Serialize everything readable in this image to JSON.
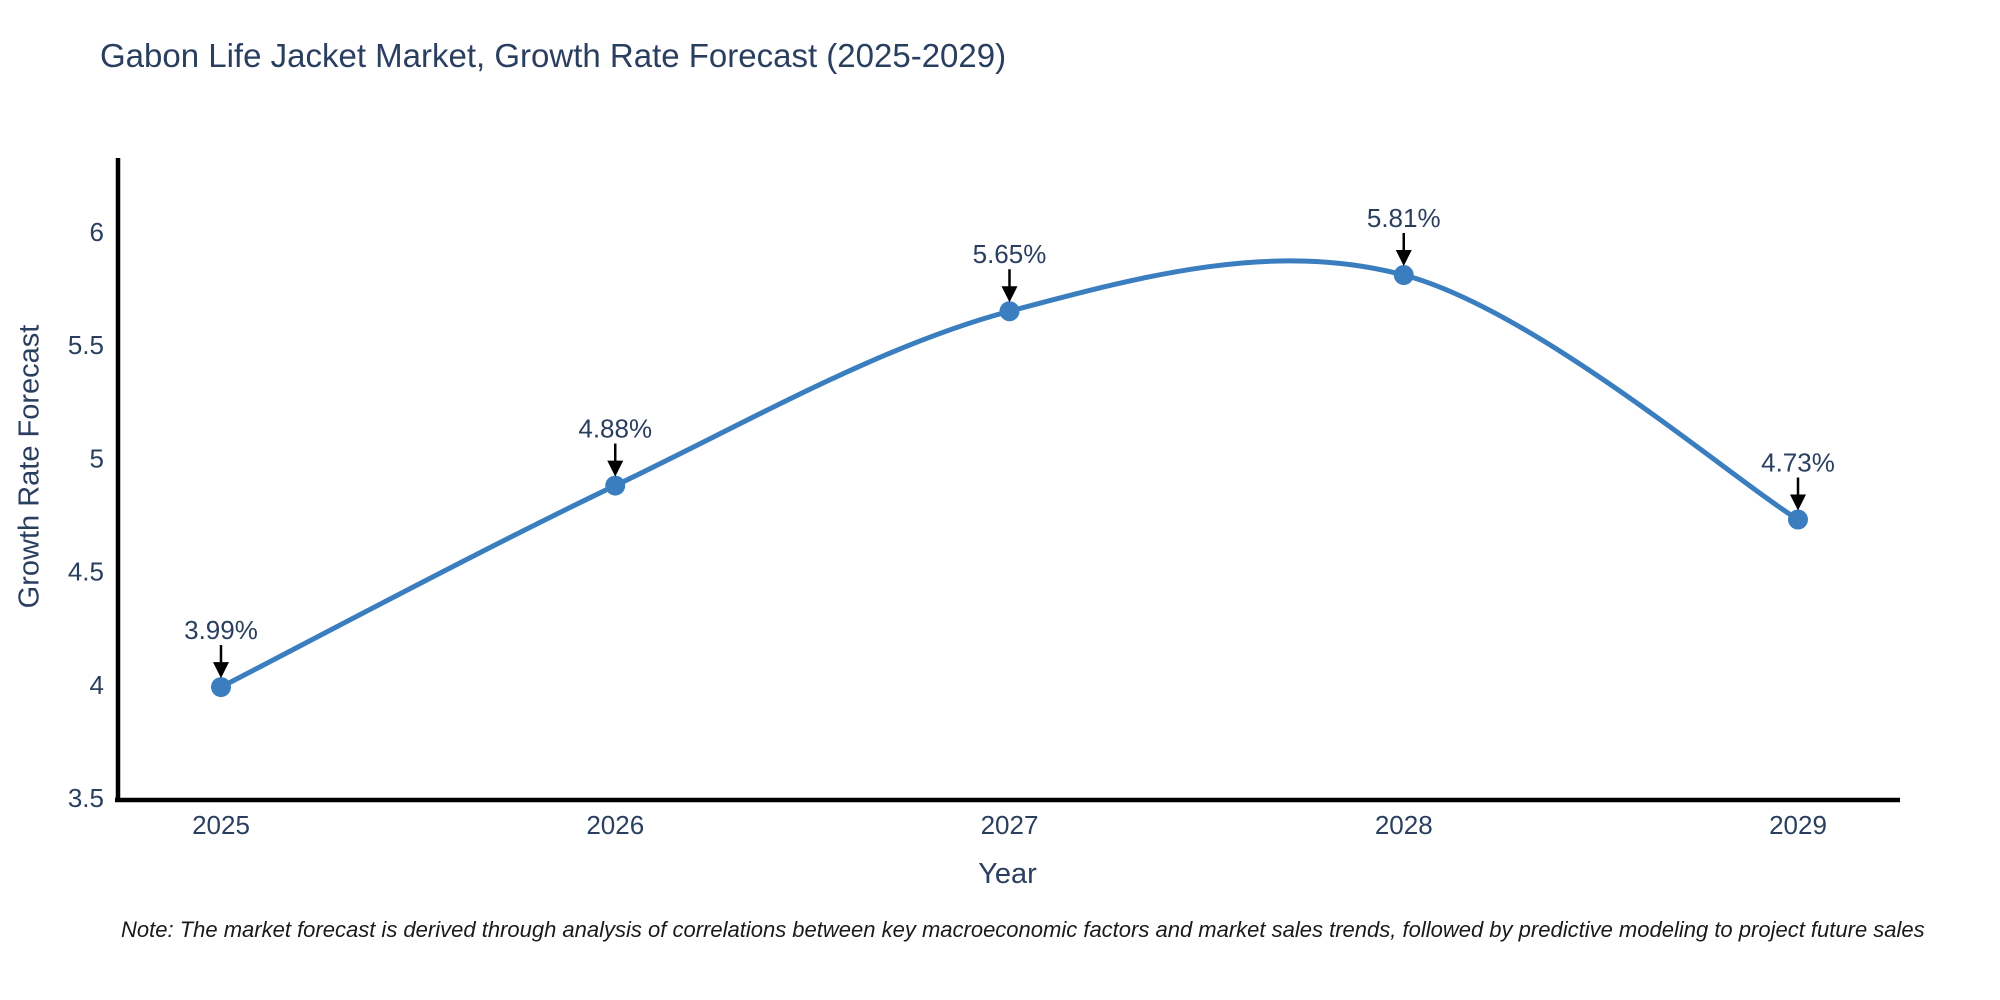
{
  "title": "Gabon Life Jacket Market, Growth Rate Forecast (2025-2029)",
  "note": "Note: The market forecast is derived through analysis of correlations between key macroeconomic factors and market sales trends, followed by predictive modeling to project future sales",
  "colors": {
    "line": "#3a7ebf",
    "marker": "#35779f",
    "marker_fill": "#3a7ebf",
    "text": "#2a3f5f",
    "axis": "#000000",
    "arrow": "#000000",
    "note_text": "#1a1a1a",
    "background": "#ffffff"
  },
  "chart_data": {
    "type": "line",
    "title": "Gabon Life Jacket Market, Growth Rate Forecast (2025-2029)",
    "x": [
      2025,
      2026,
      2027,
      2028,
      2029
    ],
    "categories": [
      "2025",
      "2026",
      "2027",
      "2028",
      "2029"
    ],
    "values": [
      3.99,
      4.88,
      5.65,
      5.81,
      4.73
    ],
    "point_labels": [
      "3.99%",
      "4.88%",
      "5.65%",
      "5.81%",
      "4.73%"
    ],
    "xlabel": "Year",
    "ylabel": "Growth Rate Forecast",
    "ylim": [
      3.5,
      6.33
    ],
    "xlim": [
      2024.73,
      2029.26
    ],
    "yticks": [
      3.5,
      4,
      4.5,
      5,
      5.5,
      6
    ],
    "ytick_labels": [
      "3.5",
      "4",
      "4.5",
      "5",
      "5.5",
      "6"
    ],
    "line_shape": "spline",
    "grid": false,
    "legend": false,
    "annotations_have_arrows": true
  }
}
